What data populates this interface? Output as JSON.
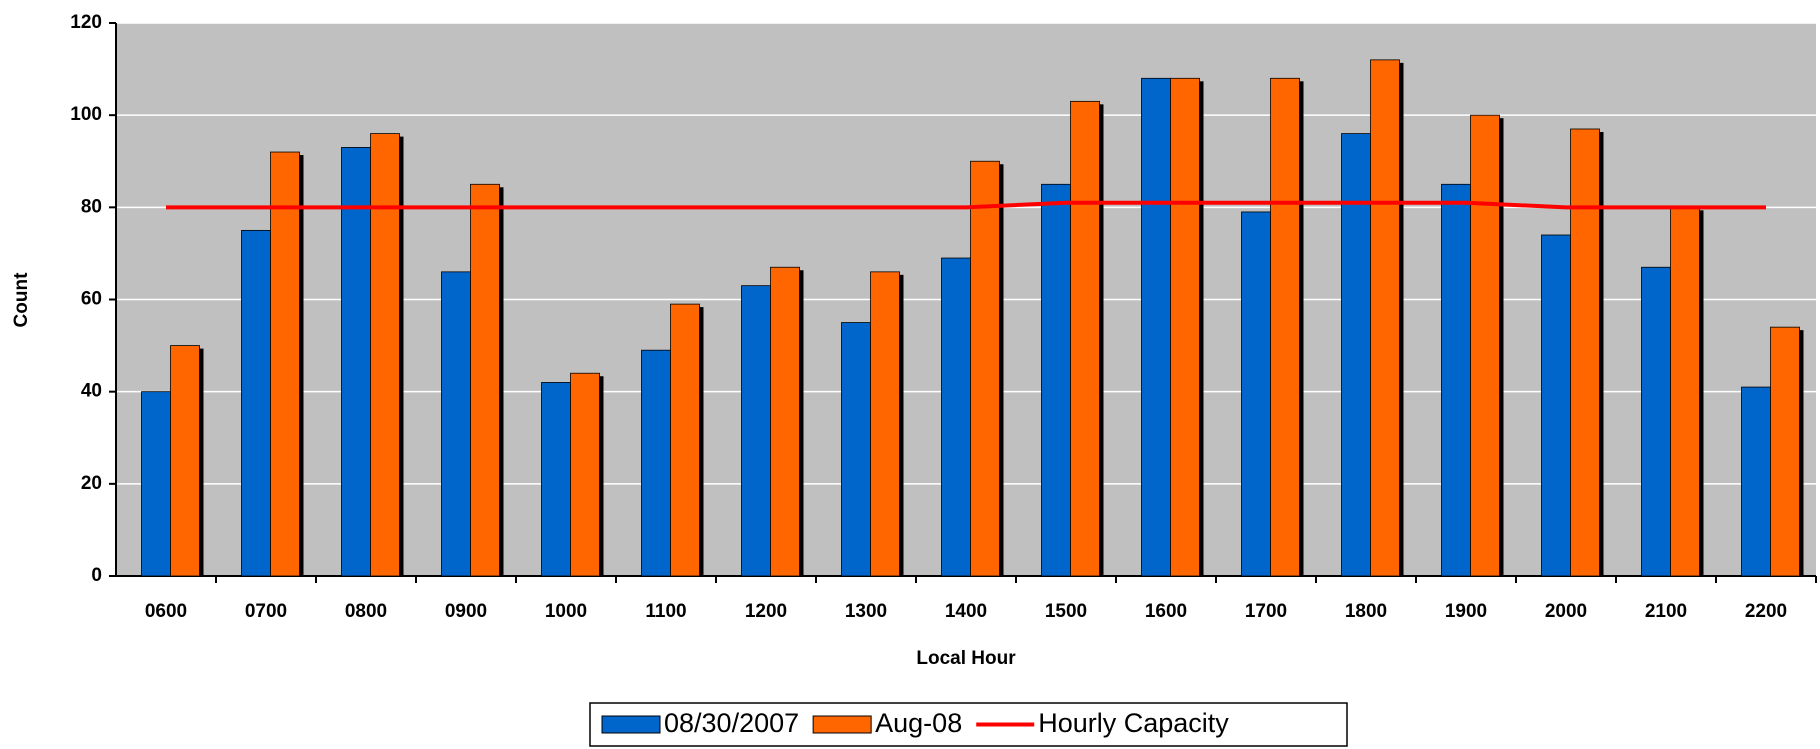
{
  "chart_data": {
    "type": "bar",
    "x_label": "Local Hour",
    "y_label": "Count",
    "categories": [
      "0600",
      "0700",
      "0800",
      "0900",
      "1000",
      "1100",
      "1200",
      "1300",
      "1400",
      "1500",
      "1600",
      "1700",
      "1800",
      "1900",
      "2000",
      "2100",
      "2200"
    ],
    "series": [
      {
        "name": "08/30/2007",
        "color": "#0066cc",
        "values": [
          40,
          75,
          93,
          66,
          42,
          49,
          63,
          55,
          69,
          85,
          108,
          79,
          96,
          85,
          74,
          67,
          41
        ]
      },
      {
        "name": "Aug-08",
        "color": "#ff6600",
        "values": [
          50,
          92,
          96,
          85,
          44,
          59,
          67,
          66,
          90,
          103,
          108,
          108,
          112,
          100,
          97,
          80,
          54
        ]
      },
      {
        "name": "Hourly Capacity",
        "type": "line",
        "color": "#ff0000",
        "values": [
          80,
          80,
          80,
          80,
          80,
          80,
          80,
          80,
          80,
          81,
          81,
          81,
          81,
          81,
          80,
          80,
          80
        ]
      }
    ],
    "ylim": [
      0,
      120
    ],
    "yticks": [
      0,
      20,
      40,
      60,
      80,
      100,
      120
    ],
    "grid": true
  }
}
